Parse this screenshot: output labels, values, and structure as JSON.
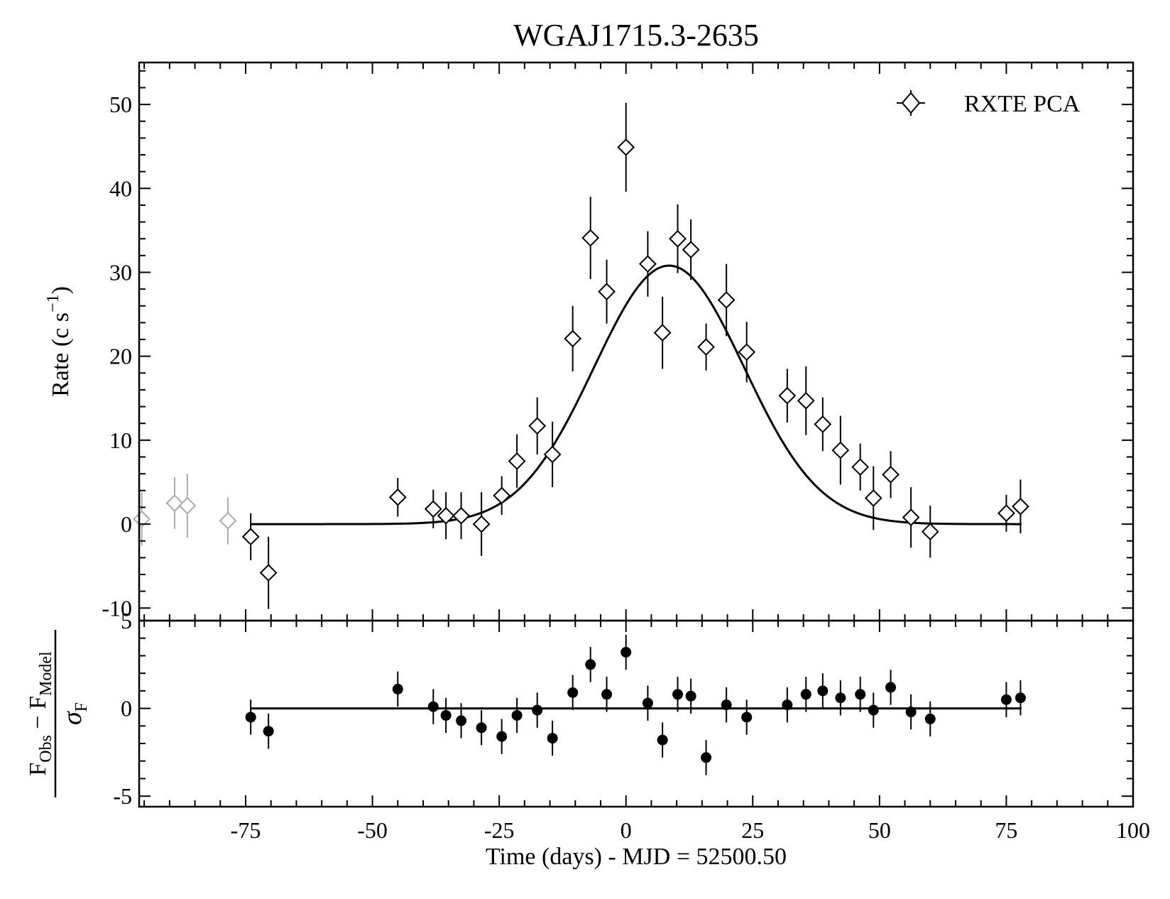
{
  "chart_data": [
    {
      "type": "scatter",
      "panel": "top",
      "title": "WGAJ1715.3-2635",
      "ylabel": "Rate (c s",
      "ylabel_sup": "−1",
      "ylabel_close": ")",
      "xlim": [
        -96,
        100
      ],
      "ylim": [
        -11.5,
        55
      ],
      "yticks": [
        -10,
        0,
        10,
        20,
        30,
        40,
        50
      ],
      "ytick_labels": [
        "-10",
        "0",
        "10",
        "20",
        "30",
        "40",
        "50"
      ],
      "legend": {
        "label": "RXTE PCA",
        "placement": "top-right"
      },
      "series": [
        {
          "name": "RXTE PCA",
          "marker": "open-diamond",
          "color": "#000000",
          "points": [
            {
              "x": -74,
              "y": -1.5,
              "err": 2.8
            },
            {
              "x": -70.5,
              "y": -5.8,
              "err": 4.3
            },
            {
              "x": -45,
              "y": 3.2,
              "err": 2.3
            },
            {
              "x": -38,
              "y": 1.8,
              "err": 2.3
            },
            {
              "x": -35.5,
              "y": 1.0,
              "err": 2.8
            },
            {
              "x": -32.5,
              "y": 1.0,
              "err": 2.8
            },
            {
              "x": -28.5,
              "y": 0.0,
              "err": 3.8
            },
            {
              "x": -24.5,
              "y": 3.4,
              "err": 2.3
            },
            {
              "x": -21.5,
              "y": 7.5,
              "err": 3.2
            },
            {
              "x": -17.5,
              "y": 11.7,
              "err": 3.4
            },
            {
              "x": -14.5,
              "y": 8.3,
              "err": 3.9
            },
            {
              "x": -10.5,
              "y": 22.1,
              "err": 3.9
            },
            {
              "x": -7,
              "y": 34.1,
              "err": 4.9
            },
            {
              "x": -3.8,
              "y": 27.7,
              "err": 3.8
            },
            {
              "x": 0,
              "y": 44.9,
              "err": 5.3
            },
            {
              "x": 4.3,
              "y": 31.0,
              "err": 3.9
            },
            {
              "x": 7.2,
              "y": 22.8,
              "err": 4.3
            },
            {
              "x": 10.2,
              "y": 34.0,
              "err": 4.1
            },
            {
              "x": 12.8,
              "y": 32.7,
              "err": 3.6
            },
            {
              "x": 15.8,
              "y": 21.1,
              "err": 2.8
            },
            {
              "x": 19.8,
              "y": 26.7,
              "err": 4.3
            },
            {
              "x": 23.8,
              "y": 20.5,
              "err": 3.6
            },
            {
              "x": 31.8,
              "y": 15.3,
              "err": 3.2
            },
            {
              "x": 35.5,
              "y": 14.7,
              "err": 4.1
            },
            {
              "x": 38.8,
              "y": 11.9,
              "err": 3.2
            },
            {
              "x": 42.3,
              "y": 8.8,
              "err": 4.1
            },
            {
              "x": 46.2,
              "y": 6.8,
              "err": 2.8
            },
            {
              "x": 48.8,
              "y": 3.1,
              "err": 3.8
            },
            {
              "x": 52.2,
              "y": 5.9,
              "err": 2.8
            },
            {
              "x": 56.2,
              "y": 0.8,
              "err": 3.6
            },
            {
              "x": 60,
              "y": -0.9,
              "err": 3.1
            },
            {
              "x": 75,
              "y": 1.3,
              "err": 2.2
            },
            {
              "x": 77.8,
              "y": 2.1,
              "err": 3.2
            }
          ]
        },
        {
          "name": "",
          "marker": "open-diamond",
          "color": "#aaaaaa",
          "points": [
            {
              "x": -95.5,
              "y": 0.6,
              "err": 3.2
            },
            {
              "x": -89,
              "y": 2.5,
              "err": 3.1
            },
            {
              "x": -86.5,
              "y": 2.2,
              "err": 3.8
            },
            {
              "x": -78.5,
              "y": 0.4,
              "err": 2.8
            }
          ]
        }
      ],
      "model": {
        "type": "gaussian",
        "amplitude": 30.8,
        "center": 8.5,
        "sigma": 14.8,
        "x_range": [
          -74,
          78
        ],
        "color": "#000000"
      }
    },
    {
      "type": "scatter",
      "panel": "bottom",
      "ylabel_numerator": "F",
      "ylabel_numerator_sub": "Obs",
      "ylabel_minus": " − F",
      "ylabel_numerator_sub2": "Model",
      "ylabel_denominator": "σ",
      "ylabel_denominator_sub": "F",
      "xlabel": "Time (days) - MJD = 52500.50",
      "xlim": [
        -96,
        100
      ],
      "ylim": [
        -5.6,
        5
      ],
      "yticks": [
        -5,
        0,
        5
      ],
      "ytick_labels": [
        "-5",
        "0",
        "5"
      ],
      "xticks": [
        -75,
        -50,
        -25,
        0,
        25,
        50,
        75,
        100
      ],
      "xtick_labels": [
        "-75",
        "-50",
        "-25",
        "0",
        "25",
        "50",
        "75",
        "100"
      ],
      "zero_line": {
        "y": 0,
        "x_range": [
          -74,
          78
        ]
      },
      "series": [
        {
          "name": "",
          "marker": "filled-circle",
          "color": "#000000",
          "points": [
            {
              "x": -74,
              "y": -0.5,
              "err": 1.0
            },
            {
              "x": -70.5,
              "y": -1.3,
              "err": 1.0
            },
            {
              "x": -45,
              "y": 1.1,
              "err": 1.0
            },
            {
              "x": -38,
              "y": 0.1,
              "err": 1.0
            },
            {
              "x": -35.5,
              "y": -0.4,
              "err": 1.0
            },
            {
              "x": -32.5,
              "y": -0.7,
              "err": 1.0
            },
            {
              "x": -28.5,
              "y": -1.1,
              "err": 1.0
            },
            {
              "x": -24.5,
              "y": -1.6,
              "err": 1.0
            },
            {
              "x": -21.5,
              "y": -0.4,
              "err": 1.0
            },
            {
              "x": -17.5,
              "y": -0.1,
              "err": 1.0
            },
            {
              "x": -14.5,
              "y": -1.7,
              "err": 1.0
            },
            {
              "x": -10.5,
              "y": 0.9,
              "err": 1.0
            },
            {
              "x": -7,
              "y": 2.5,
              "err": 1.0
            },
            {
              "x": -3.8,
              "y": 0.8,
              "err": 1.0
            },
            {
              "x": 0,
              "y": 3.2,
              "err": 1.0
            },
            {
              "x": 4.3,
              "y": 0.3,
              "err": 1.0
            },
            {
              "x": 7.2,
              "y": -1.8,
              "err": 1.0
            },
            {
              "x": 10.2,
              "y": 0.8,
              "err": 1.0
            },
            {
              "x": 12.8,
              "y": 0.7,
              "err": 1.0
            },
            {
              "x": 15.8,
              "y": -2.8,
              "err": 1.0
            },
            {
              "x": 19.8,
              "y": 0.2,
              "err": 1.0
            },
            {
              "x": 23.8,
              "y": -0.5,
              "err": 1.0
            },
            {
              "x": 31.8,
              "y": 0.2,
              "err": 1.0
            },
            {
              "x": 35.5,
              "y": 0.8,
              "err": 1.0
            },
            {
              "x": 38.8,
              "y": 1.0,
              "err": 1.0
            },
            {
              "x": 42.3,
              "y": 0.6,
              "err": 1.0
            },
            {
              "x": 46.2,
              "y": 0.8,
              "err": 1.0
            },
            {
              "x": 48.8,
              "y": -0.1,
              "err": 1.0
            },
            {
              "x": 52.2,
              "y": 1.2,
              "err": 1.0
            },
            {
              "x": 56.2,
              "y": -0.2,
              "err": 1.0
            },
            {
              "x": 60,
              "y": -0.6,
              "err": 1.0
            },
            {
              "x": 75,
              "y": 0.5,
              "err": 1.0
            },
            {
              "x": 77.8,
              "y": 0.6,
              "err": 1.0
            }
          ]
        }
      ]
    }
  ]
}
